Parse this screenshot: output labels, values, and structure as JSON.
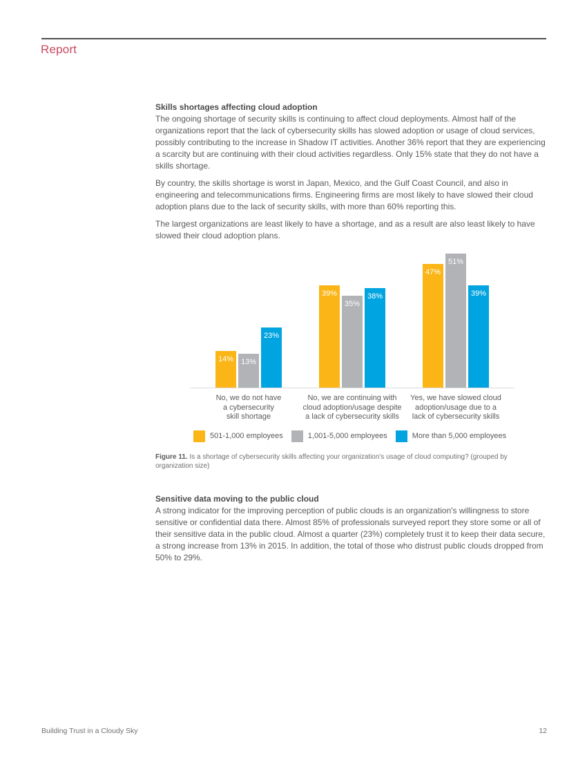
{
  "header": {
    "title": "Report",
    "accent_color": "#c9485e"
  },
  "sections": [
    {
      "heading": "Skills shortages affecting cloud adoption",
      "paragraphs": [
        "The ongoing shortage of security skills is continuing to affect cloud deployments. Almost half of the organizations report that the lack of cybersecurity skills has slowed adoption or usage of cloud services, possibly contributing to the increase in Shadow IT activities. Another 36% report that they are experiencing a scarcity but are continuing with their cloud activities regardless. Only 15% state that they do not have a skills shortage.",
        "By country, the skills shortage is worst in Japan, Mexico, and the Gulf Coast Council, and also in engineering and telecommunications firms. Engineering firms are most likely to have slowed their cloud adoption plans due to the lack of security skills, with more than 60% reporting this.",
        "The largest organizations are least likely to have a shortage, and as a result are also least likely to have slowed their cloud adoption plans."
      ]
    },
    {
      "heading": "Sensitive data moving to the public cloud",
      "paragraphs": [
        "A strong indicator for the improving perception of public clouds is an organization's willingness to store sensitive or confidential data there. Almost 85% of professionals surveyed report they store some or all of their sensitive data in the public cloud. Almost a quarter (23%) completely trust it to keep their data secure, a strong increase from 13% in 2015. In addition, the total of those who distrust public clouds dropped from 50% to 29%."
      ]
    }
  ],
  "figure_caption": {
    "label": "Figure 11.",
    "text": "Is a shortage of cybersecurity skills affecting your organization's usage of cloud computing? (grouped by organization size)"
  },
  "chart_data": {
    "type": "bar",
    "title": "",
    "xlabel": "",
    "ylabel": "",
    "ylim": [
      0,
      52
    ],
    "grid": false,
    "legend_position": "bottom",
    "value_suffix": "%",
    "bar_label_style": "inside-top-white",
    "axis_line_color": "#dadbdc",
    "categories": [
      "No, we do not have a cybersecurity skill shortage",
      "No, we are continuing with cloud adoption/usage despite a lack of cybersecurity skills",
      "Yes, we have slowed cloud adoption/usage due to a lack of cybersecurity skills"
    ],
    "category_lines": [
      [
        "No, we do not have",
        "a cybersecurity",
        "skill shortage"
      ],
      [
        "No, we are continuing with",
        "cloud adoption/usage despite",
        "a lack of cybersecurity skills"
      ],
      [
        "Yes, we have slowed cloud",
        "adoption/usage due to a",
        "lack of cybersecurity skills"
      ]
    ],
    "series": [
      {
        "name": "501-1,000 employees",
        "color": "#fbb516",
        "values": [
          14,
          39,
          47
        ]
      },
      {
        "name": "1,001-5,000 employees",
        "color": "#b1b3b6",
        "values": [
          13,
          35,
          51
        ]
      },
      {
        "name": "More than 5,000 employees",
        "color": "#00a4e0",
        "values": [
          23,
          38,
          39
        ]
      }
    ]
  },
  "footer": {
    "left": "Building Trust in a Cloudy Sky",
    "page_number": "12"
  }
}
